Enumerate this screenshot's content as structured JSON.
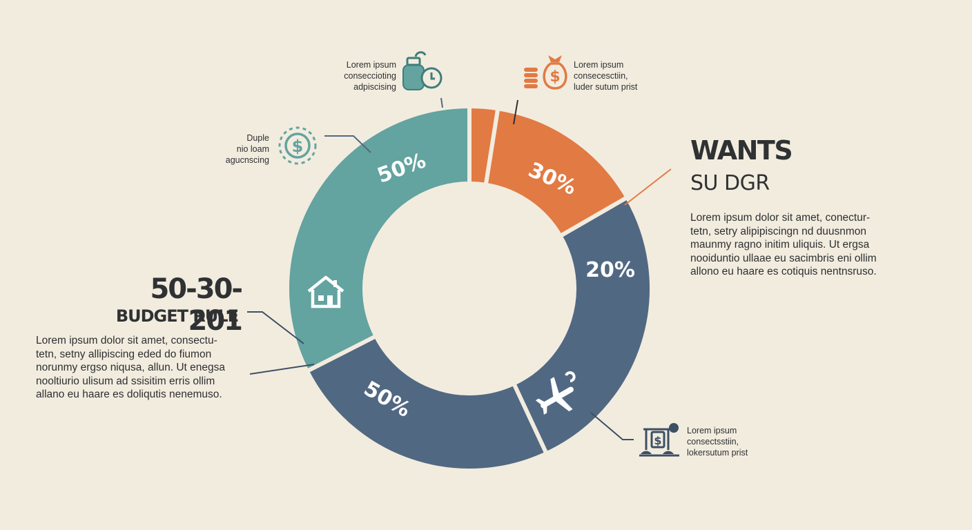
{
  "colors": {
    "background": "#f2ecdf",
    "teal": "#63a3a0",
    "orange": "#e27a43",
    "navy": "#516882",
    "text": "#2d2f31",
    "white": "#ffffff"
  },
  "chart_data": {
    "type": "pie",
    "variant": "donut",
    "slices": [
      {
        "label": "30%",
        "value": 30,
        "color": "#e27a43"
      },
      {
        "label": "20%",
        "value": 20,
        "color": "#516882"
      },
      {
        "label": "50%",
        "value": 50,
        "color": "#516882"
      },
      {
        "label": "50%",
        "value": 50,
        "color": "#63a3a0"
      }
    ],
    "extra_wedge_color": "#e27a43"
  },
  "left_block": {
    "title": "50-30-201",
    "subtitle": "BUDGET RULE",
    "body": [
      "Lorem ipsum dolor sit amet, consectu-",
      "tetn,  setny allipiscing eded do fiumon",
      "norunmy ergso niqusa, allun. Ut enegsa",
      "nooltiurio  ulisum ad ssisitim erris ollim",
      "allano eu  haare es  doliqutis nenemuso."
    ]
  },
  "right_block": {
    "title": "WANTS",
    "subtitle": "SU DGR",
    "body": [
      "Lorem ipsum dolor sit amet, conectur-",
      "tetn, setry alipipiscingn nd duusnmon",
      "maunmy ragno initim uliquis. Ut ergsa",
      "nooiduntio  ullaae eu sacimbris eni ollim",
      "allono eu  haare es  cotiquis nentnsruso."
    ]
  },
  "callouts": {
    "top_left": [
      "Lorem ipsum",
      "conseccioting",
      "adpiscising"
    ],
    "top_right": [
      "Lorem ipsum",
      "consecesctiin,",
      "luder sutum prist"
    ],
    "left": [
      "Duple",
      "nio loam",
      "agucnscing"
    ],
    "bottom_right": [
      "Lorem ipsum",
      "consectsstiin,",
      "lokersutum prist"
    ]
  },
  "icons": {
    "house": "house-icon",
    "plane": "airplane-icon",
    "jar": "savings-jar-icon",
    "clock": "clock-icon",
    "coins": "coin-stack-icon",
    "moneybag": "money-bag-icon",
    "dollar_circle": "dollar-circle-icon",
    "scale": "balance-scale-icon"
  }
}
